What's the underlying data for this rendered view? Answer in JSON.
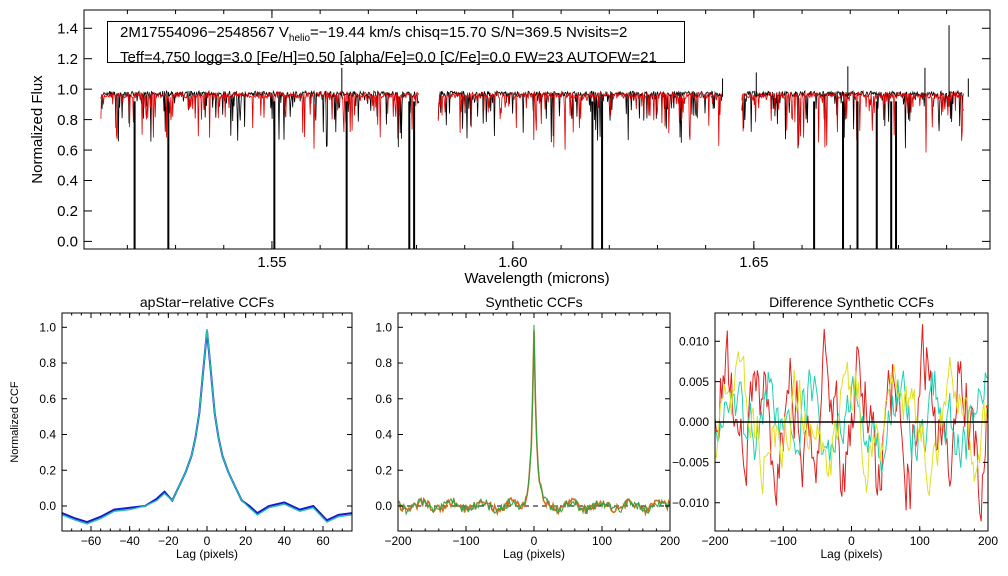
{
  "info_box": {
    "line1_a": "2M17554096−2548567  V",
    "line1_sub": "helio",
    "line1_b": "=−19.44 km/s  chisq=15.70  S/N=369.5  Nvisits=2",
    "line2": "Teff=4,750 logg=3.0 [Fe/H]=0.50 [alpha/Fe]=0.0 [C/Fe]=0.0 FW=23 AUTOFW=21"
  },
  "colors": {
    "observed": "#000000",
    "model": "#e00000",
    "ccf_blue": "#1a1acc",
    "ccf_cyan": "#20c0b0",
    "orange": "#d07020",
    "green": "#30a040",
    "yellow": "#e0e020",
    "zero_line": "#000000"
  },
  "chart_data": [
    {
      "type": "line",
      "title": "",
      "xlabel": "Wavelength (microns)",
      "ylabel": "Normalized Flux",
      "xlim": [
        1.511,
        1.699
      ],
      "ylim": [
        -0.05,
        1.52
      ],
      "xticks": [
        "1.55",
        "1.60",
        "1.65"
      ],
      "xtick_values": [
        1.55,
        1.6,
        1.65
      ],
      "yticks": [
        "0.0",
        "0.2",
        "0.4",
        "0.6",
        "0.8",
        "1.0",
        "1.2",
        "1.4"
      ],
      "ytick_values": [
        0.0,
        0.2,
        0.4,
        0.6,
        0.8,
        1.0,
        1.2,
        1.4
      ],
      "chips": [
        [
          1.5145,
          1.5805
        ],
        [
          1.5845,
          1.6435
        ],
        [
          1.6475,
          1.6935
        ]
      ],
      "series": [
        {
          "name": "observed spectrum",
          "color": "#000000",
          "continuum": 0.97,
          "noise": 0.035
        },
        {
          "name": "model spectrum",
          "color": "#e00000",
          "continuum": 0.96,
          "noise": 0.04
        }
      ],
      "masked_pixels": [
        1.5215,
        1.5285,
        1.5505,
        1.5655,
        1.5785,
        1.5795,
        1.6165,
        1.6185,
        1.6625,
        1.6685,
        1.6715,
        1.6755,
        1.6785,
        1.6795
      ],
      "emission_spikes": [
        [
          1.5645,
          1.14
        ],
        [
          1.6435,
          1.07
        ],
        [
          1.6505,
          1.11
        ],
        [
          1.6695,
          1.15
        ],
        [
          1.6855,
          1.14
        ],
        [
          1.6905,
          1.42
        ],
        [
          1.6945,
          1.07
        ]
      ]
    },
    {
      "type": "line",
      "title": "apStar−relative CCFs",
      "xlabel": "Lag (pixels)",
      "ylabel": "Normalized CCF",
      "xlim": [
        -75,
        75
      ],
      "ylim": [
        -0.14,
        1.08
      ],
      "xticks": [
        "−60",
        "−40",
        "−20",
        "0",
        "20",
        "40",
        "60"
      ],
      "xtick_values": [
        -60,
        -40,
        -20,
        0,
        20,
        40,
        60
      ],
      "yticks": [
        "0.0",
        "0.2",
        "0.4",
        "0.6",
        "0.8",
        "1.0"
      ],
      "ytick_values": [
        0.0,
        0.2,
        0.4,
        0.6,
        0.8,
        1.0
      ],
      "series": [
        {
          "name": "visit 1",
          "color": "#1a1acc",
          "x": [
            -75,
            -68,
            -62,
            -55,
            -48,
            -40,
            -32,
            -26,
            -22,
            -18,
            -14,
            -11,
            -8,
            -6,
            -4,
            -2,
            0,
            2,
            4,
            6,
            8,
            11,
            14,
            18,
            22,
            26,
            32,
            40,
            48,
            55,
            62,
            68,
            75
          ],
          "y": [
            -0.04,
            -0.07,
            -0.09,
            -0.06,
            -0.02,
            -0.01,
            0.0,
            0.04,
            0.08,
            0.03,
            0.12,
            0.19,
            0.28,
            0.38,
            0.52,
            0.75,
            0.98,
            0.75,
            0.52,
            0.38,
            0.28,
            0.19,
            0.12,
            0.03,
            0.0,
            -0.04,
            0.0,
            0.02,
            -0.02,
            0.0,
            -0.08,
            -0.05,
            -0.04
          ]
        },
        {
          "name": "visit 2",
          "color": "#20c0b0",
          "x": [
            -75,
            -68,
            -62,
            -55,
            -48,
            -40,
            -32,
            -26,
            -22,
            -18,
            -14,
            -11,
            -8,
            -6,
            -4,
            -2,
            0,
            2,
            4,
            6,
            8,
            11,
            14,
            18,
            22,
            26,
            32,
            40,
            48,
            55,
            62,
            68,
            75
          ],
          "y": [
            -0.05,
            -0.08,
            -0.1,
            -0.07,
            -0.03,
            -0.02,
            0.0,
            0.03,
            0.07,
            0.03,
            0.12,
            0.19,
            0.28,
            0.38,
            0.52,
            0.75,
            0.99,
            0.75,
            0.52,
            0.38,
            0.28,
            0.19,
            0.12,
            0.03,
            -0.01,
            -0.05,
            -0.01,
            0.01,
            -0.03,
            -0.01,
            -0.09,
            -0.06,
            -0.05
          ]
        }
      ]
    },
    {
      "type": "line",
      "title": "Synthetic CCFs",
      "xlabel": "Lag (pixels)",
      "ylabel": "",
      "xlim": [
        -200,
        200
      ],
      "ylim": [
        -0.14,
        1.08
      ],
      "xticks": [
        "−200",
        "−100",
        "0",
        "100",
        "200"
      ],
      "xtick_values": [
        -200,
        -100,
        0,
        100,
        200
      ],
      "yticks": [
        "0.0",
        "0.2",
        "0.4",
        "0.6",
        "0.8",
        "1.0"
      ],
      "ytick_values": [
        0.0,
        0.2,
        0.4,
        0.6,
        0.8,
        1.0
      ],
      "zero_line_dashed": true,
      "series": [
        {
          "name": "synthetic CCF",
          "color": "#d07020",
          "peak": 1.0,
          "peak_x": 0,
          "width": 4
        },
        {
          "name": "synthetic CCF 2",
          "color": "#30a040",
          "peak": 0.99,
          "peak_x": 0,
          "width": 4
        }
      ]
    },
    {
      "type": "line",
      "title": "Difference Synthetic CCFs",
      "xlabel": "Lag (pixels)",
      "ylabel": "",
      "xlim": [
        -200,
        200
      ],
      "ylim": [
        -0.0135,
        0.0135
      ],
      "xticks": [
        "−200",
        "−100",
        "0",
        "100",
        "200"
      ],
      "xtick_values": [
        -200,
        -100,
        0,
        100,
        200
      ],
      "yticks": [
        "−0.010",
        "−0.005",
        "0.000",
        "0.005",
        "0.010"
      ],
      "ytick_values": [
        -0.01,
        -0.005,
        0.0,
        0.005,
        0.01
      ],
      "series": [
        {
          "name": "difference 1",
          "color": "#e02020",
          "amp": 0.006
        },
        {
          "name": "difference 2",
          "color": "#20d0b0",
          "amp": 0.004
        },
        {
          "name": "difference 3",
          "color": "#e0e020",
          "amp": 0.004
        }
      ]
    }
  ]
}
